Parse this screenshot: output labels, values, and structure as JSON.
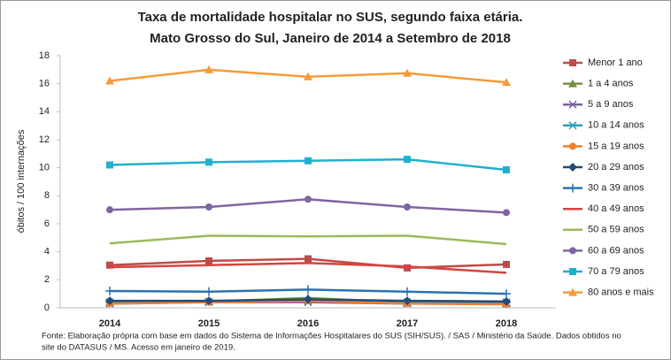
{
  "chart_data": {
    "type": "line",
    "title": "Taxa de mortalidade hospitalar no SUS, segundo faixa etária.",
    "subtitle": "Mato Grosso do Sul, Janeiro de 2014 a Setembro de 2018",
    "y_label": "óbitos / 100 internações",
    "note_lines": [
      "Fonte: Elaboração própria com base em dados do  Sistema de Informações Hospitalares do SUS (SIH/SUS). / SAS / Ministério da Saúde. Dados obtidos no",
      "site do DATASUS / MS. Acesso em janeiro de 2019."
    ],
    "categories": [
      "2014",
      "2015",
      "2016",
      "2017",
      "2018"
    ],
    "ylim": [
      0,
      18
    ],
    "yticks": [
      0,
      2,
      4,
      6,
      8,
      10,
      12,
      14,
      16,
      18
    ],
    "grid": false,
    "legend": "right",
    "series": [
      {
        "name": "Menor 1 ano",
        "color": "#be4b48",
        "marker": "square",
        "values": [
          3.05,
          3.35,
          3.5,
          2.85,
          3.1
        ]
      },
      {
        "name": "1 a 4 anos",
        "color": "#77933c",
        "marker": "triangle",
        "values": [
          0.4,
          0.45,
          0.7,
          0.4,
          0.35
        ]
      },
      {
        "name": "5 a 9 anos",
        "color": "#7d60a0",
        "marker": "x",
        "values": [
          0.3,
          0.4,
          0.4,
          0.3,
          0.3
        ]
      },
      {
        "name": "10 a 14 anos",
        "color": "#2b9fb8",
        "marker": "star",
        "values": [
          0.4,
          0.45,
          0.5,
          0.4,
          0.4
        ]
      },
      {
        "name": "15 a 19 anos",
        "color": "#f07f2c",
        "marker": "circle",
        "values": [
          0.3,
          0.4,
          0.5,
          0.3,
          0.25
        ]
      },
      {
        "name": "20 a 29 anos",
        "color": "#254a78",
        "marker": "diamond",
        "values": [
          0.5,
          0.5,
          0.6,
          0.5,
          0.45
        ]
      },
      {
        "name": "30 a 39 anos",
        "color": "#2b72b0",
        "marker": "plus",
        "values": [
          1.2,
          1.15,
          1.3,
          1.15,
          1.0
        ]
      },
      {
        "name": "40 a 49 anos",
        "color": "#d9433f",
        "marker": "none",
        "values": [
          2.9,
          3.05,
          3.2,
          2.95,
          2.5
        ]
      },
      {
        "name": "50 a 59 anos",
        "color": "#9bbb59",
        "marker": "none",
        "values": [
          4.6,
          5.15,
          5.1,
          5.15,
          4.55
        ]
      },
      {
        "name": "60 a 69 anos",
        "color": "#8064a2",
        "marker": "circle",
        "values": [
          7.0,
          7.2,
          7.75,
          7.2,
          6.8
        ]
      },
      {
        "name": "70 a 79 anos",
        "color": "#1fb0d0",
        "marker": "square",
        "values": [
          10.2,
          10.4,
          10.5,
          10.6,
          9.85
        ]
      },
      {
        "name": "80 anos e mais",
        "color": "#f79a3a",
        "marker": "triangle",
        "values": [
          16.2,
          17.0,
          16.5,
          16.75,
          16.1
        ]
      }
    ]
  }
}
